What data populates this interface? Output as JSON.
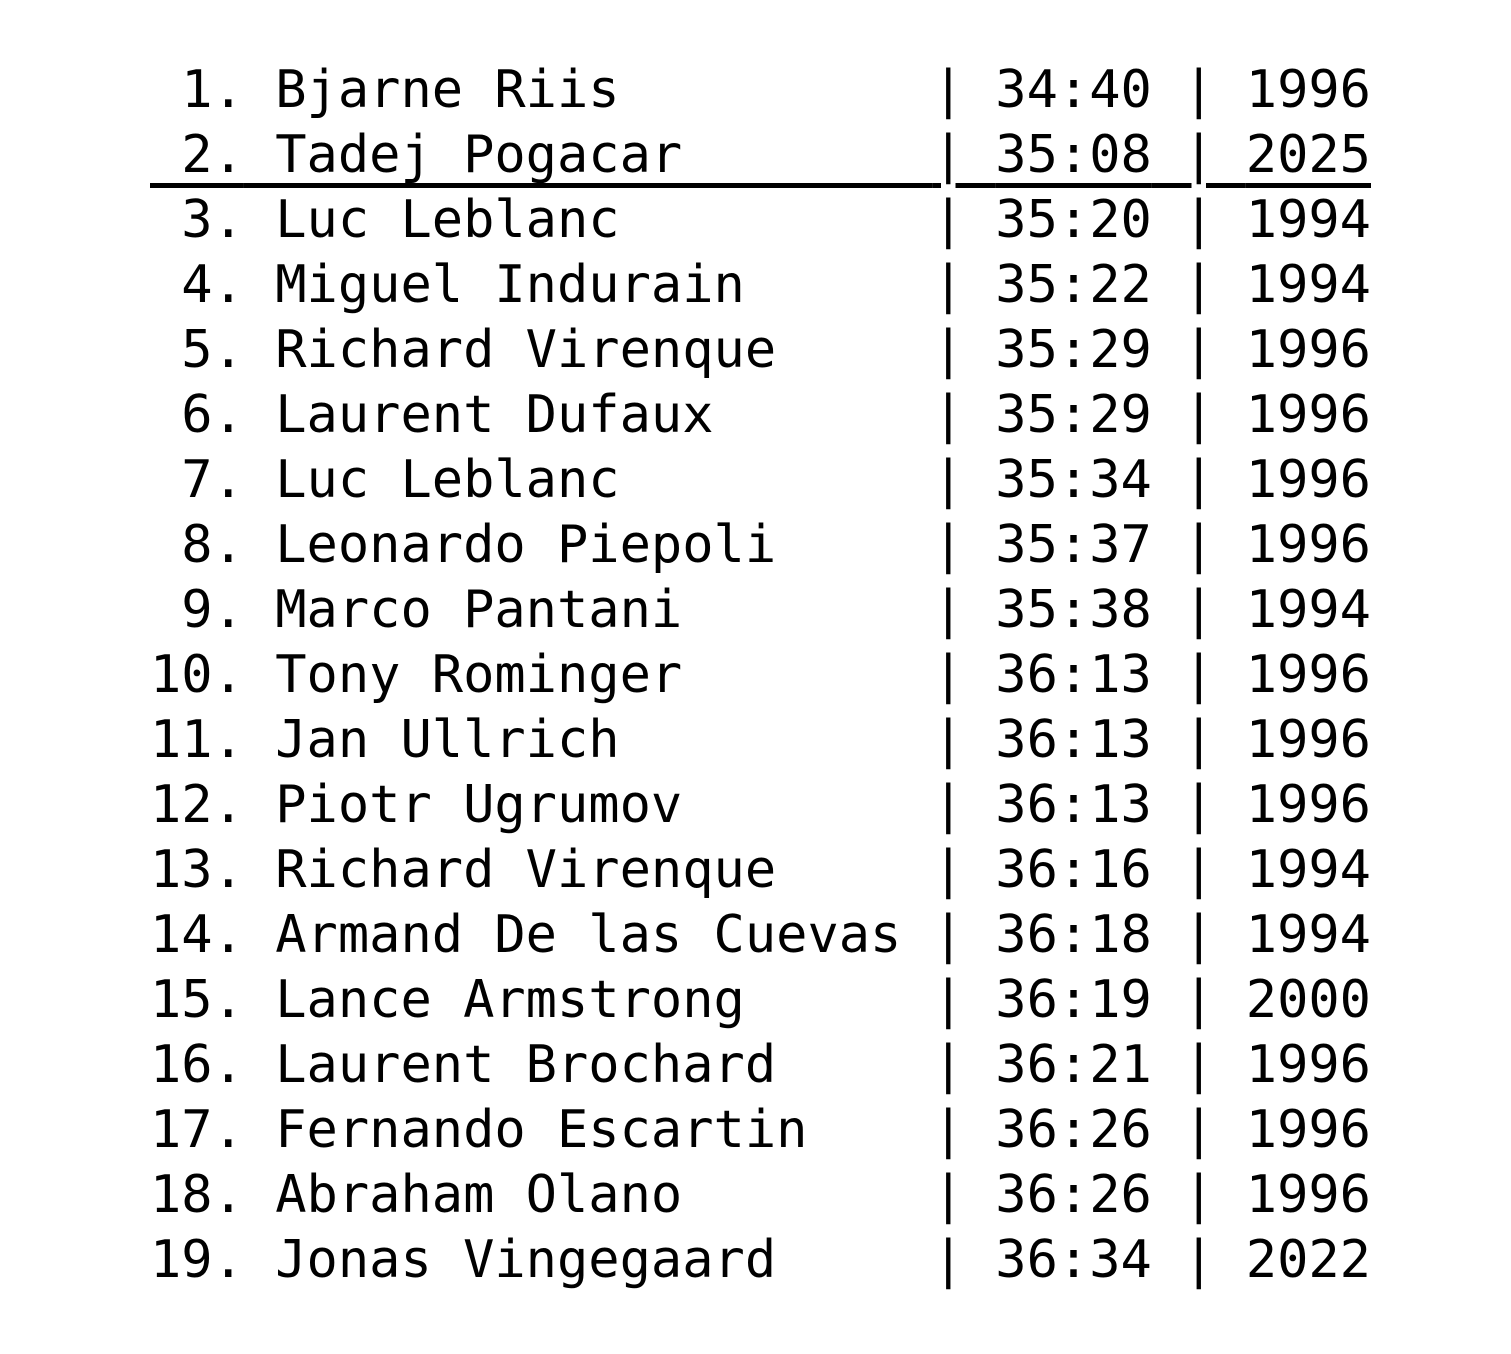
{
  "page": {
    "background": "#ffffff",
    "text_color": "#000000"
  },
  "table": {
    "separator": "|",
    "highlighted_rank": "2",
    "rows": [
      {
        "rank": "1",
        "name": "Bjarne Riis",
        "time": "34:40",
        "year": "1996",
        "underlined": false
      },
      {
        "rank": "2",
        "name": "Tadej Pogacar",
        "time": "35:08",
        "year": "2025",
        "underlined": true
      },
      {
        "rank": "3",
        "name": "Luc Leblanc",
        "time": "35:20",
        "year": "1994",
        "underlined": false
      },
      {
        "rank": "4",
        "name": "Miguel Indurain",
        "time": "35:22",
        "year": "1994",
        "underlined": false
      },
      {
        "rank": "5",
        "name": "Richard Virenque",
        "time": "35:29",
        "year": "1996",
        "underlined": false
      },
      {
        "rank": "6",
        "name": "Laurent Dufaux",
        "time": "35:29",
        "year": "1996",
        "underlined": false
      },
      {
        "rank": "7",
        "name": "Luc Leblanc",
        "time": "35:34",
        "year": "1996",
        "underlined": false
      },
      {
        "rank": "8",
        "name": "Leonardo Piepoli",
        "time": "35:37",
        "year": "1996",
        "underlined": false
      },
      {
        "rank": "9",
        "name": "Marco Pantani",
        "time": "35:38",
        "year": "1994",
        "underlined": false
      },
      {
        "rank": "10",
        "name": "Tony Rominger",
        "time": "36:13",
        "year": "1996",
        "underlined": false
      },
      {
        "rank": "11",
        "name": "Jan Ullrich",
        "time": "36:13",
        "year": "1996",
        "underlined": false
      },
      {
        "rank": "12",
        "name": "Piotr Ugrumov",
        "time": "36:13",
        "year": "1996",
        "underlined": false
      },
      {
        "rank": "13",
        "name": "Richard Virenque",
        "time": "36:16",
        "year": "1994",
        "underlined": false
      },
      {
        "rank": "14",
        "name": "Armand De las Cuevas",
        "time": "36:18",
        "year": "1994",
        "underlined": false
      },
      {
        "rank": "15",
        "name": "Lance Armstrong",
        "time": "36:19",
        "year": "2000",
        "underlined": false
      },
      {
        "rank": "16",
        "name": "Laurent Brochard",
        "time": "36:21",
        "year": "1996",
        "underlined": false
      },
      {
        "rank": "17",
        "name": "Fernando Escartin",
        "time": "36:26",
        "year": "1996",
        "underlined": false
      },
      {
        "rank": "18",
        "name": "Abraham Olano",
        "time": "36:26",
        "year": "1996",
        "underlined": false
      },
      {
        "rank": "19",
        "name": "Jonas Vingegaard",
        "time": "36:34",
        "year": "2022",
        "underlined": false
      }
    ]
  }
}
